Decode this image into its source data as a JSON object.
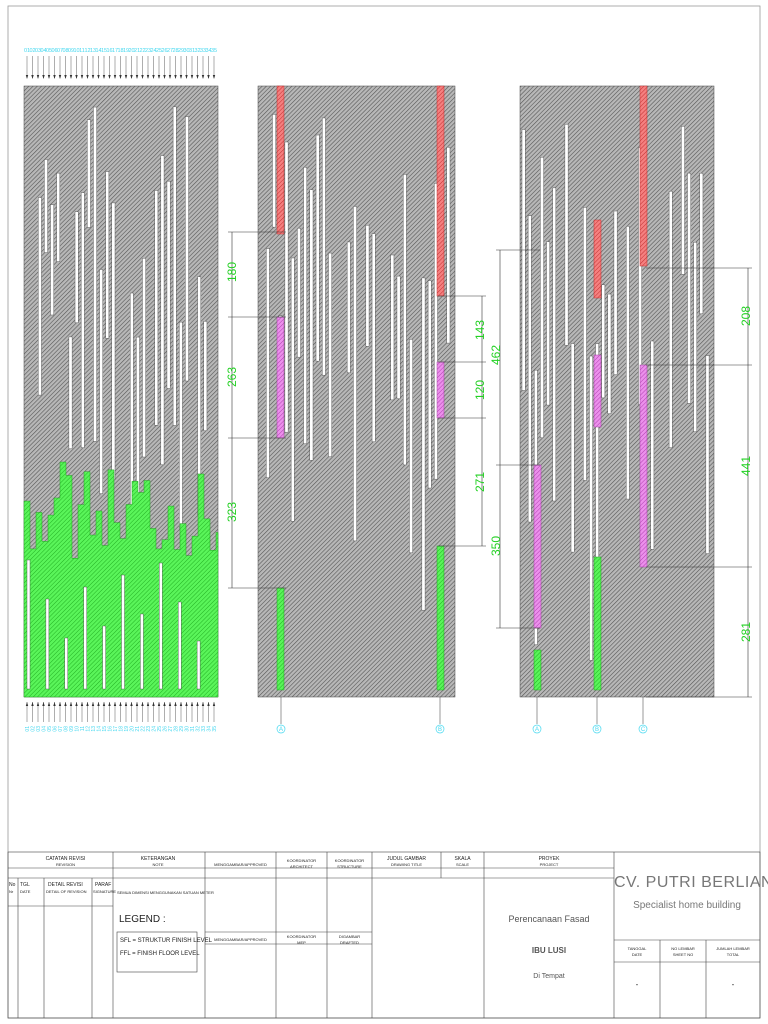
{
  "panels": {
    "left": {
      "top_labels": [
        "01",
        "02",
        "03",
        "04",
        "05",
        "06",
        "07",
        "08",
        "09",
        "10",
        "11",
        "12",
        "13",
        "14",
        "15",
        "16",
        "17",
        "18",
        "19",
        "20",
        "21",
        "22",
        "23",
        "24",
        "25",
        "26",
        "27",
        "28",
        "29",
        "30",
        "31",
        "32",
        "33",
        "34",
        "35"
      ],
      "bottom_labels": [
        "01",
        "02",
        "03",
        "04",
        "05",
        "06",
        "07",
        "08",
        "09",
        "10",
        "11",
        "12",
        "13",
        "14",
        "15",
        "16",
        "17",
        "18",
        "19",
        "20",
        "21",
        "22",
        "23",
        "24",
        "25",
        "26",
        "27",
        "28",
        "29",
        "30",
        "31",
        "32",
        "33",
        "34",
        "35"
      ]
    },
    "middle": {
      "dimensions": [
        "180",
        "263",
        "323"
      ],
      "dimensions_right": [
        "143",
        "120",
        "271"
      ],
      "markers": [
        "A",
        "B"
      ]
    },
    "right": {
      "dimensions_left": [
        "462",
        "350"
      ],
      "dimensions_right": [
        "208",
        "441",
        "281"
      ],
      "markers": [
        "A",
        "B",
        "C"
      ]
    }
  },
  "title_block": {
    "catatan_revisi": "CATATAN REVISI",
    "catatan_revisi_sub": "REVISION",
    "no": "No",
    "no_sub": "Nr",
    "tgl": "TGL",
    "tgl_sub": "DATE",
    "detail_revisi": "DETAIL REVISI",
    "detail_revisi_sub": "DETAIL OF REVISION",
    "paraf": "PARAF",
    "paraf_sub": "SIGNATURE",
    "keterangan": "KETERANGAN",
    "keterangan_sub": "NOTE",
    "note_text": "SEMUA DIMENSI MENGGUNAKAN SATUAN METER",
    "legend_title": "LEGEND :",
    "legend_sfl": "SFL = STRUKTUR FINISH LEVEL",
    "legend_ffl": "FFL = FINISH FLOOR LEVEL",
    "menggambar": "MENGGAMBAR/APPROVED",
    "koordinator_arsitek": "KOORDINATOR",
    "koordinator_arsitek_sub": "ARCHITECT",
    "koordinator_struktur": "KOORDINATOR",
    "koordinator_struktur_sub": "STRUCTURE",
    "menggambar2": "MENGGAMBAR/APPROVED",
    "koordinator_mep": "KOORDINATOR",
    "koordinator_mep_sub": "MEP",
    "digambar": "DIGAMBAR",
    "digambar_sub": "DRAFTED",
    "judul_gambar": "JUDUL GAMBAR",
    "judul_gambar_sub": "DRAWING TITLE",
    "skala": "SKALA",
    "skala_sub": "SCALE",
    "proyek": "PROYEK",
    "proyek_sub": "PROJECT",
    "project_name": "Perencanaan Fasad",
    "client": "IBU LUSI",
    "location": "Di Tempat",
    "company": "CV. PUTRI BERLIANA",
    "company_tagline": "Specialist home building",
    "tanggal": "TANGGAL",
    "tanggal_sub": "DATE",
    "no_lembar": "NO LEMBAR",
    "no_lembar_sub": "SHEET NO",
    "jumlah_lembar": "JUMLAH LEMBAR",
    "jumlah_lembar_sub": "TOTAL",
    "tanggal_val": "-",
    "jumlah_val": "-"
  },
  "colors": {
    "hatch": "#8c8c8c",
    "green": "#3cf03c",
    "red": "#f06060",
    "magenta": "#e070e0",
    "dim": "#22d022",
    "cyan": "#44d8f0"
  }
}
